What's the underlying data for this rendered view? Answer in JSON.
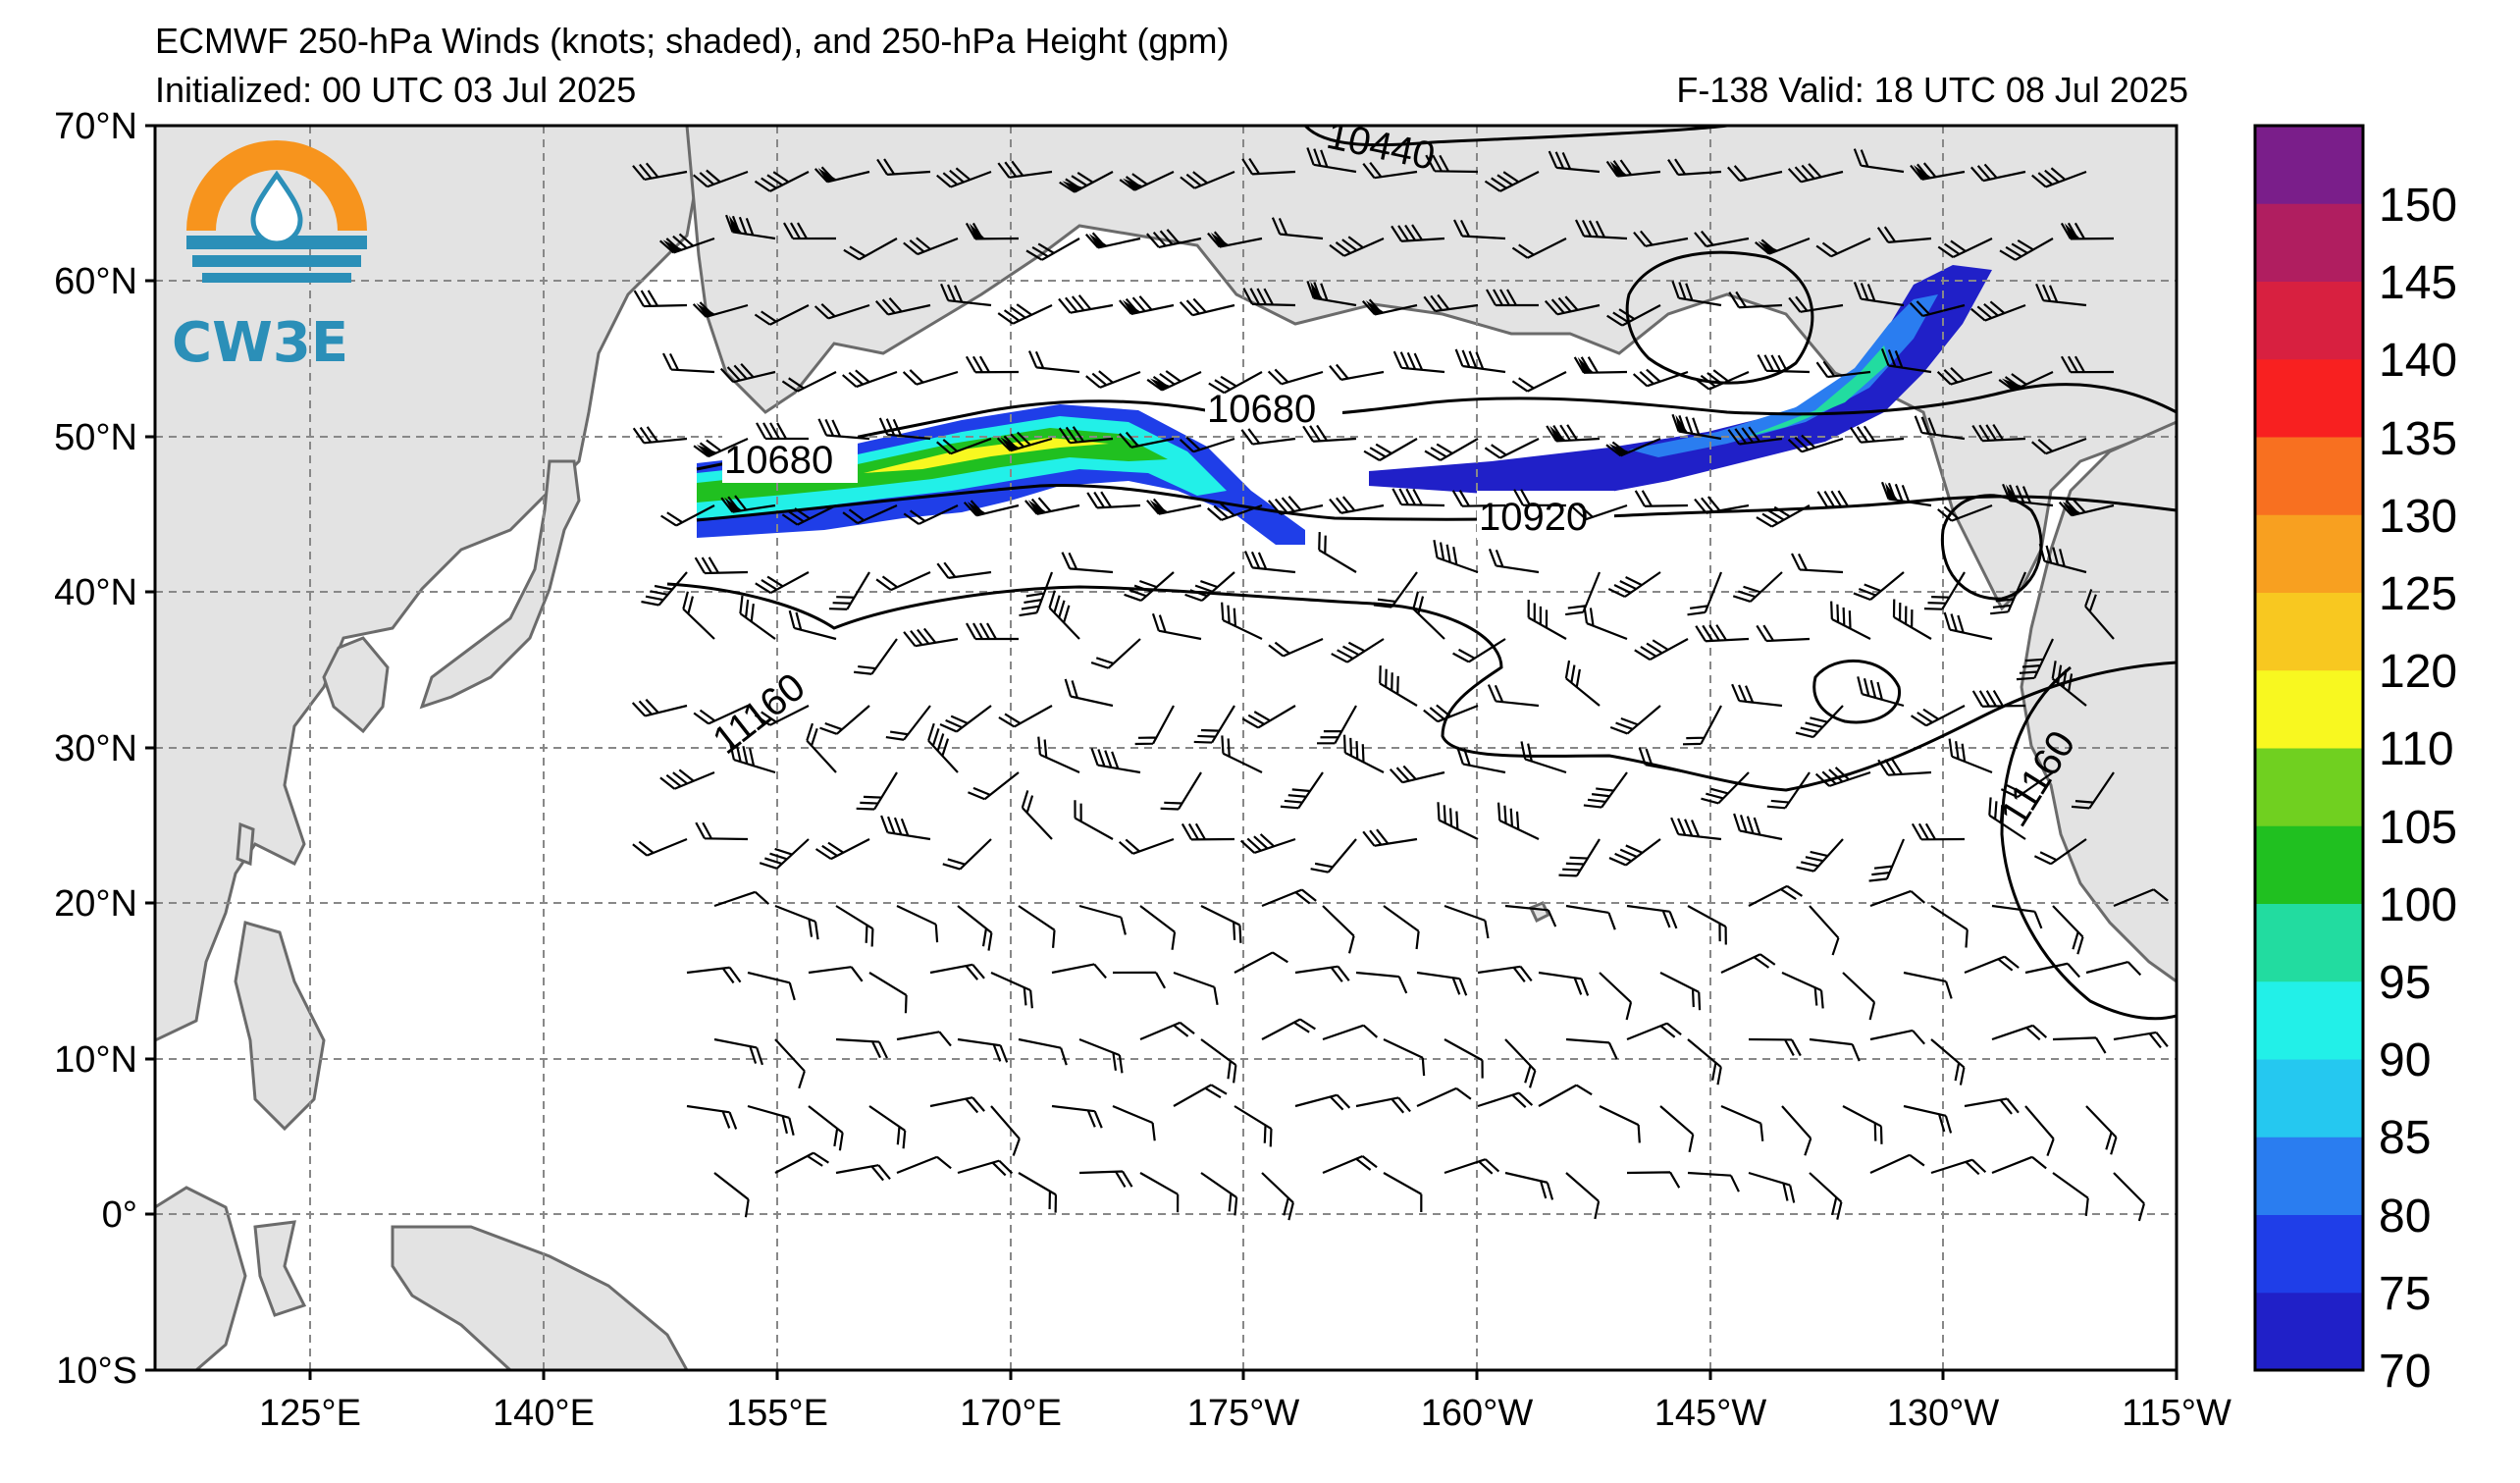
{
  "header": {
    "title": "ECMWF 250-hPa Winds (knots; shaded), and 250-hPa Height (gpm)",
    "initialized": "Initialized: 00 UTC 03 Jul 2025",
    "valid": "F-138  Valid: 18 UTC 08 Jul 2025"
  },
  "logo": {
    "text": "CW3E",
    "colors": {
      "sun": "#f7941d",
      "water": "#2b8fb8"
    }
  },
  "axes": {
    "lat_labels": [
      "70°N",
      "60°N",
      "50°N",
      "40°N",
      "30°N",
      "20°N",
      "10°N",
      "0°",
      "10°S"
    ],
    "lon_labels": [
      "125°E",
      "140°E",
      "155°E",
      "170°E",
      "175°W",
      "160°W",
      "145°W",
      "130°W",
      "115°W"
    ]
  },
  "contours": {
    "labels": [
      {
        "text": "10440"
      },
      {
        "text": "10680"
      },
      {
        "text": "10680"
      },
      {
        "text": "10920"
      },
      {
        "text": "11160"
      },
      {
        "text": "11160"
      }
    ]
  },
  "colorbar": {
    "labels": [
      "70",
      "75",
      "80",
      "85",
      "90",
      "95",
      "100",
      "105",
      "110",
      "120",
      "125",
      "130",
      "135",
      "140",
      "145",
      "150"
    ],
    "colors": [
      "#2020c8",
      "#1f3ee8",
      "#2a7df0",
      "#25c8f0",
      "#22f0e8",
      "#22dca0",
      "#20c020",
      "#70d020",
      "#f8f820",
      "#f8c820",
      "#f8a020",
      "#f87020",
      "#f82020",
      "#d82040",
      "#b01e60",
      "#7a1e8a"
    ]
  },
  "colors": {
    "land": "#e3e3e3",
    "coast": "#6b6b6b",
    "grid": "#888888"
  }
}
